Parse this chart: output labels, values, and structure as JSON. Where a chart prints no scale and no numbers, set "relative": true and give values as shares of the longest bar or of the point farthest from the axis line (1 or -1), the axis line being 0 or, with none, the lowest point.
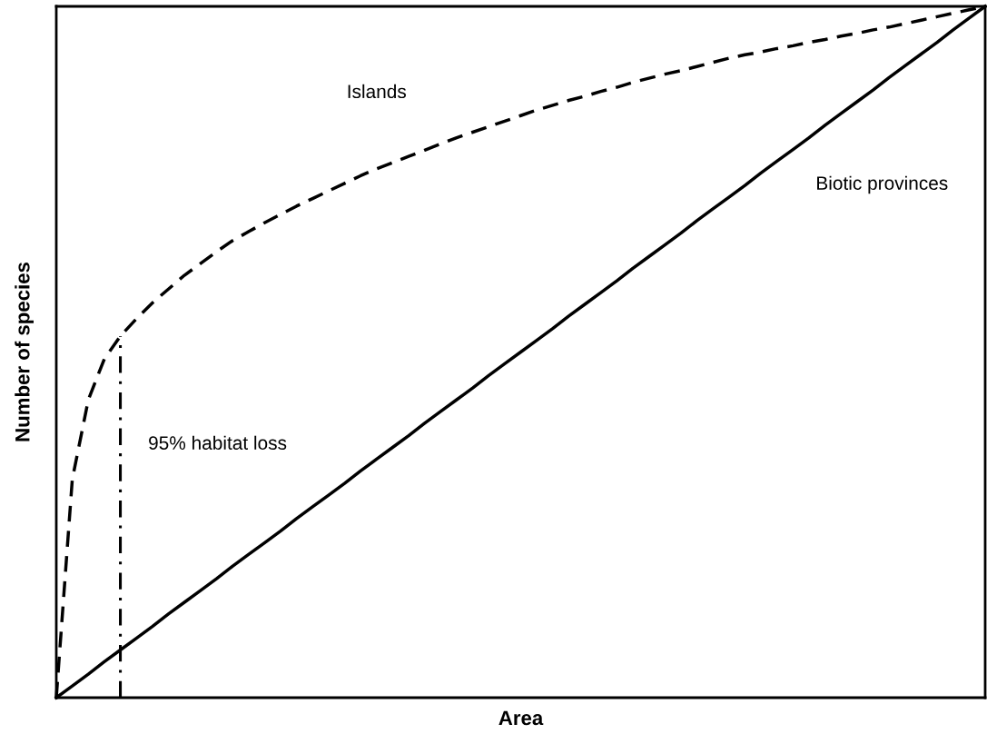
{
  "chart_data": {
    "type": "line",
    "relative": true,
    "xlabel": "Area",
    "ylabel": "Number of species",
    "categories": [
      null,
      null,
      null,
      null,
      null,
      null,
      null,
      null,
      null,
      null,
      null,
      null,
      null,
      null,
      null,
      null,
      null,
      null,
      null,
      null,
      null,
      null,
      null,
      null,
      null,
      null,
      null,
      null,
      null,
      null,
      null,
      null,
      null,
      null,
      null,
      null,
      null,
      null,
      null,
      null,
      null,
      null,
      null,
      null,
      null,
      null,
      null,
      null,
      null,
      null,
      null,
      null,
      null,
      null,
      null,
      null,
      null,
      null,
      null
    ],
    "series": [
      {
        "name": "Islands",
        "color": "#000000",
        "line_style": "dashed",
        "values": [
          0,
          0.316,
          0.431,
          0.49,
          0.523,
          0.548,
          0.571,
          0.591,
          0.611,
          0.628,
          0.645,
          0.661,
          0.674,
          0.687,
          0.699,
          0.711,
          0.722,
          0.733,
          0.744,
          0.755,
          0.765,
          0.774,
          0.783,
          0.792,
          0.801,
          0.81,
          0.818,
          0.826,
          0.834,
          0.842,
          0.85,
          0.857,
          0.864,
          0.87,
          0.877,
          0.883,
          0.89,
          0.896,
          0.902,
          0.907,
          0.913,
          0.919,
          0.925,
          0.93,
          0.934,
          0.939,
          0.943,
          0.948,
          0.952,
          0.957,
          0.961,
          0.966,
          0.97,
          0.975,
          0.98,
          0.985,
          0.99,
          0.995,
          1
        ]
      },
      {
        "name": "Biotic provinces",
        "color": "#000000",
        "line_style": "solid",
        "values": [
          0,
          0.017,
          0.034,
          0.052,
          0.069,
          0.086,
          0.103,
          0.121,
          0.138,
          0.155,
          0.172,
          0.19,
          0.207,
          0.224,
          0.241,
          0.259,
          0.276,
          0.293,
          0.31,
          0.328,
          0.345,
          0.362,
          0.379,
          0.397,
          0.414,
          0.431,
          0.448,
          0.466,
          0.483,
          0.5,
          0.517,
          0.534,
          0.552,
          0.569,
          0.586,
          0.603,
          0.621,
          0.638,
          0.655,
          0.672,
          0.69,
          0.707,
          0.724,
          0.741,
          0.759,
          0.776,
          0.793,
          0.81,
          0.828,
          0.845,
          0.862,
          0.879,
          0.897,
          0.914,
          0.931,
          0.948,
          0.966,
          0.983,
          1
        ]
      }
    ],
    "annotations": [
      "95% habitat loss"
    ]
  }
}
